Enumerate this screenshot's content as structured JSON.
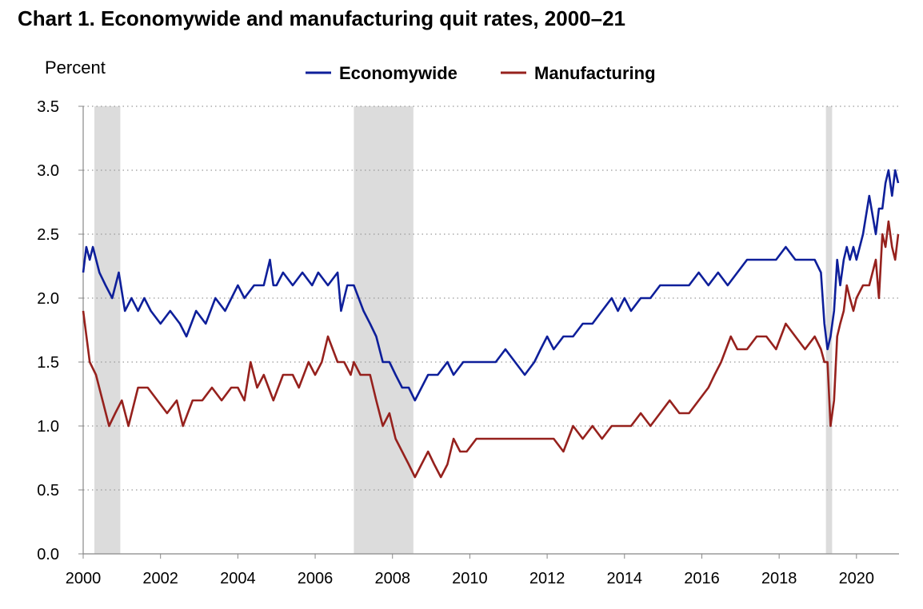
{
  "chart_data": {
    "type": "line",
    "title": "Chart 1. Economywide and manufacturing quit rates, 2000–21",
    "ylabel": "Percent",
    "xlabel": "",
    "xlim": [
      2000.0,
      2021.1
    ],
    "ylim": [
      0,
      3.5
    ],
    "yticks": [
      "0.0",
      "0.5",
      "1.0",
      "1.5",
      "2.0",
      "2.5",
      "3.0",
      "3.5"
    ],
    "xticks": [
      "2000",
      "2002",
      "2004",
      "2006",
      "2008",
      "2010",
      "2012",
      "2014",
      "2016",
      "2018",
      "2020"
    ],
    "grid": "horizontal-dotted",
    "legend_position": "top-center",
    "recessions": [
      [
        2000.29,
        2000.96
      ],
      [
        2007.0,
        2008.54
      ],
      [
        2019.21,
        2019.37
      ]
    ],
    "series": [
      {
        "name": "Economywide",
        "color": "#0e1f9a",
        "x": [
          2000.0,
          2000.08,
          2000.17,
          2000.25,
          2000.42,
          2000.58,
          2000.75,
          2000.92,
          2001.08,
          2001.25,
          2001.42,
          2001.58,
          2001.75,
          2002.0,
          2002.25,
          2002.5,
          2002.67,
          2002.92,
          2003.17,
          2003.42,
          2003.67,
          2004.0,
          2004.17,
          2004.42,
          2004.67,
          2004.83,
          2004.92,
          2005.0,
          2005.17,
          2005.42,
          2005.67,
          2005.92,
          2006.08,
          2006.33,
          2006.58,
          2006.67,
          2006.83,
          2007.0,
          2007.25,
          2007.42,
          2007.58,
          2007.75,
          2007.92,
          2008.08,
          2008.25,
          2008.42,
          2008.58,
          2008.75,
          2008.92,
          2009.17,
          2009.42,
          2009.58,
          2009.83,
          2010.0,
          2010.17,
          2010.42,
          2010.67,
          2010.92,
          2011.17,
          2011.42,
          2011.67,
          2011.83,
          2012.0,
          2012.17,
          2012.42,
          2012.67,
          2012.92,
          2013.17,
          2013.42,
          2013.67,
          2013.83,
          2014.0,
          2014.17,
          2014.42,
          2014.67,
          2014.92,
          2015.17,
          2015.42,
          2015.67,
          2015.92,
          2016.17,
          2016.42,
          2016.67,
          2016.92,
          2017.17,
          2017.42,
          2017.67,
          2017.92,
          2018.17,
          2018.42,
          2018.67,
          2018.92,
          2019.08,
          2019.17,
          2019.25,
          2019.33,
          2019.42,
          2019.5,
          2019.58,
          2019.67,
          2019.75,
          2019.83,
          2019.92,
          2020.0,
          2020.17,
          2020.33,
          2020.5,
          2020.58,
          2020.67,
          2020.75,
          2020.83,
          2020.92,
          2021.0,
          2021.08
        ],
        "y": [
          2.2,
          2.4,
          2.3,
          2.4,
          2.2,
          2.1,
          2.0,
          2.2,
          1.9,
          2.0,
          1.9,
          2.0,
          1.9,
          1.8,
          1.9,
          1.8,
          1.7,
          1.9,
          1.8,
          2.0,
          1.9,
          2.1,
          2.0,
          2.1,
          2.1,
          2.3,
          2.1,
          2.1,
          2.2,
          2.1,
          2.2,
          2.1,
          2.2,
          2.1,
          2.2,
          1.9,
          2.1,
          2.1,
          1.9,
          1.8,
          1.7,
          1.5,
          1.5,
          1.4,
          1.3,
          1.3,
          1.2,
          1.3,
          1.4,
          1.4,
          1.5,
          1.4,
          1.5,
          1.5,
          1.5,
          1.5,
          1.5,
          1.6,
          1.5,
          1.4,
          1.5,
          1.6,
          1.7,
          1.6,
          1.7,
          1.7,
          1.8,
          1.8,
          1.9,
          2.0,
          1.9,
          2.0,
          1.9,
          2.0,
          2.0,
          2.1,
          2.1,
          2.1,
          2.1,
          2.2,
          2.1,
          2.2,
          2.1,
          2.2,
          2.3,
          2.3,
          2.3,
          2.3,
          2.4,
          2.3,
          2.3,
          2.3,
          2.2,
          1.8,
          1.6,
          1.7,
          1.9,
          2.3,
          2.1,
          2.3,
          2.4,
          2.3,
          2.4,
          2.3,
          2.5,
          2.8,
          2.5,
          2.7,
          2.7,
          2.9,
          3.0,
          2.8,
          3.0,
          2.9
        ]
      },
      {
        "name": "Manufacturing",
        "color": "#96211d",
        "x": [
          2000.0,
          2000.17,
          2000.33,
          2000.5,
          2000.67,
          2000.83,
          2001.0,
          2001.17,
          2001.42,
          2001.67,
          2001.92,
          2002.17,
          2002.42,
          2002.58,
          2002.83,
          2003.08,
          2003.33,
          2003.58,
          2003.83,
          2004.0,
          2004.17,
          2004.33,
          2004.5,
          2004.67,
          2004.92,
          2005.17,
          2005.42,
          2005.58,
          2005.83,
          2006.0,
          2006.17,
          2006.33,
          2006.58,
          2006.75,
          2006.92,
          2007.0,
          2007.17,
          2007.42,
          2007.58,
          2007.75,
          2007.92,
          2008.08,
          2008.25,
          2008.42,
          2008.58,
          2008.75,
          2008.92,
          2009.08,
          2009.25,
          2009.42,
          2009.58,
          2009.75,
          2009.92,
          2010.17,
          2010.42,
          2010.67,
          2010.92,
          2011.17,
          2011.42,
          2011.67,
          2011.92,
          2012.17,
          2012.42,
          2012.67,
          2012.92,
          2013.17,
          2013.42,
          2013.67,
          2013.92,
          2014.17,
          2014.42,
          2014.67,
          2014.92,
          2015.17,
          2015.42,
          2015.67,
          2015.92,
          2016.17,
          2016.33,
          2016.5,
          2016.75,
          2016.92,
          2017.17,
          2017.42,
          2017.67,
          2017.92,
          2018.17,
          2018.42,
          2018.67,
          2018.92,
          2019.08,
          2019.17,
          2019.25,
          2019.33,
          2019.42,
          2019.5,
          2019.58,
          2019.67,
          2019.75,
          2019.83,
          2019.92,
          2020.0,
          2020.17,
          2020.33,
          2020.5,
          2020.58,
          2020.67,
          2020.75,
          2020.83,
          2020.92,
          2021.0,
          2021.08
        ],
        "y": [
          1.9,
          1.5,
          1.4,
          1.2,
          1.0,
          1.1,
          1.2,
          1.0,
          1.3,
          1.3,
          1.2,
          1.1,
          1.2,
          1.0,
          1.2,
          1.2,
          1.3,
          1.2,
          1.3,
          1.3,
          1.2,
          1.5,
          1.3,
          1.4,
          1.2,
          1.4,
          1.4,
          1.3,
          1.5,
          1.4,
          1.5,
          1.7,
          1.5,
          1.5,
          1.4,
          1.5,
          1.4,
          1.4,
          1.2,
          1.0,
          1.1,
          0.9,
          0.8,
          0.7,
          0.6,
          0.7,
          0.8,
          0.7,
          0.6,
          0.7,
          0.9,
          0.8,
          0.8,
          0.9,
          0.9,
          0.9,
          0.9,
          0.9,
          0.9,
          0.9,
          0.9,
          0.9,
          0.8,
          1.0,
          0.9,
          1.0,
          0.9,
          1.0,
          1.0,
          1.0,
          1.1,
          1.0,
          1.1,
          1.2,
          1.1,
          1.1,
          1.2,
          1.3,
          1.4,
          1.5,
          1.7,
          1.6,
          1.6,
          1.7,
          1.7,
          1.6,
          1.8,
          1.7,
          1.6,
          1.7,
          1.6,
          1.5,
          1.5,
          1.0,
          1.2,
          1.7,
          1.8,
          1.9,
          2.1,
          2.0,
          1.9,
          2.0,
          2.1,
          2.1,
          2.3,
          2.0,
          2.5,
          2.4,
          2.6,
          2.4,
          2.3,
          2.5
        ]
      }
    ]
  }
}
